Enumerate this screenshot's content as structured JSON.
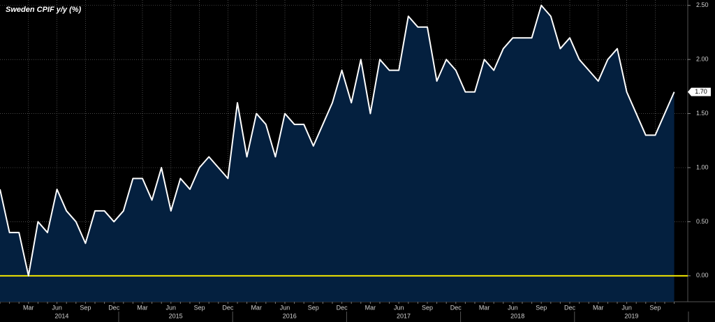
{
  "chart_data": {
    "type": "area",
    "title": "Sweden CPIF y/y (%)",
    "categories": [
      null,
      null,
      null,
      "Mar",
      null,
      null,
      "Jun",
      null,
      null,
      "Sep",
      null,
      null,
      "Dec",
      null,
      null,
      "Mar",
      null,
      null,
      "Jun",
      null,
      null,
      "Sep",
      null,
      null,
      "Dec",
      null,
      null,
      "Mar",
      null,
      null,
      "Jun",
      null,
      null,
      "Sep",
      null,
      null,
      "Dec",
      null,
      null,
      "Mar",
      null,
      null,
      "Jun",
      null,
      null,
      "Sep",
      null,
      null,
      "Dec",
      null,
      null,
      "Mar",
      null,
      null,
      "Jun",
      null,
      null,
      "Sep",
      null,
      null,
      "Dec",
      null,
      null,
      "Mar",
      null,
      null,
      "Jun",
      null,
      null,
      "Sep",
      null,
      null
    ],
    "years": [
      "2014",
      "2015",
      "2016",
      "2017",
      "2018",
      "2019"
    ],
    "series": [
      {
        "name": "Sweden CPIF y/y (%)",
        "color": "#ffffff",
        "fill": "#04203f",
        "values": [
          0.8,
          0.4,
          0.4,
          0.0,
          0.5,
          0.4,
          0.8,
          0.6,
          0.5,
          0.3,
          0.6,
          0.6,
          0.5,
          0.6,
          0.9,
          0.9,
          0.7,
          1.0,
          0.6,
          0.9,
          0.8,
          1.0,
          1.1,
          1.0,
          0.9,
          1.6,
          1.1,
          1.5,
          1.4,
          1.1,
          1.5,
          1.4,
          1.4,
          1.2,
          1.4,
          1.6,
          1.9,
          1.6,
          2.0,
          1.5,
          2.0,
          1.9,
          1.9,
          2.4,
          2.3,
          2.3,
          1.8,
          2.0,
          1.9,
          1.7,
          1.7,
          2.0,
          1.9,
          2.1,
          2.2,
          2.2,
          2.2,
          2.5,
          2.4,
          2.1,
          2.2,
          2.0,
          1.9,
          1.8,
          2.0,
          2.1,
          1.7,
          1.5,
          1.3,
          1.3,
          1.5,
          1.7
        ],
        "value_labels": [
          null,
          null,
          null,
          null,
          null,
          null,
          null,
          null,
          null,
          null,
          null,
          null,
          null,
          null,
          null,
          null,
          null,
          null,
          null,
          null,
          null,
          null,
          null,
          null,
          null,
          null,
          null,
          null,
          null,
          null,
          null,
          null,
          null,
          null,
          null,
          null,
          null,
          null,
          null,
          null,
          null,
          null,
          null,
          null,
          null,
          null,
          null,
          null,
          null,
          null,
          null,
          null,
          null,
          null,
          null,
          null,
          null,
          null,
          null,
          null,
          null,
          null,
          null,
          null,
          null,
          null,
          null,
          null,
          null,
          null,
          null,
          "1.70"
        ]
      }
    ],
    "ylim": [
      -0.24,
      2.55
    ],
    "yticks": [
      {
        "value": 0,
        "label": "0.00"
      },
      {
        "value": 0.5,
        "label": "0.50"
      },
      {
        "value": 1,
        "label": "1.00"
      },
      {
        "value": 1.5,
        "label": "1.50"
      },
      {
        "value": 2,
        "label": "2.00"
      },
      {
        "value": 2.5,
        "label": "2.50"
      }
    ],
    "reference_line": {
      "value": 0,
      "color": "#f2e600"
    },
    "grid": true
  }
}
